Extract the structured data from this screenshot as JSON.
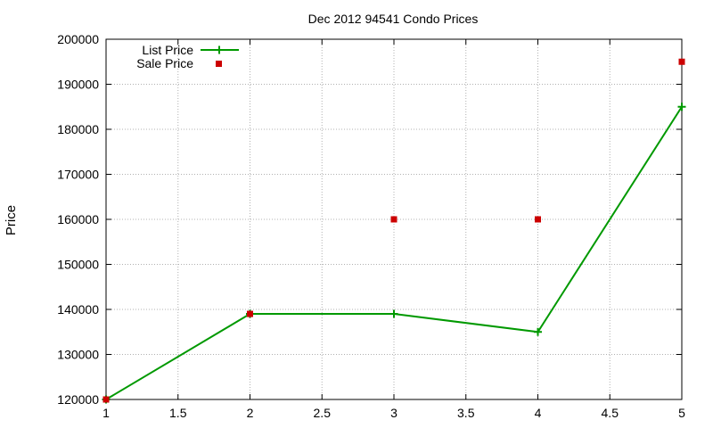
{
  "chart_data": {
    "type": "line",
    "title": "Dec 2012 94541 Condo Prices",
    "xlabel": "",
    "ylabel": "Price",
    "xlim": [
      1,
      5
    ],
    "ylim": [
      120000,
      200000
    ],
    "x_ticks": [
      "1",
      "1.5",
      "2",
      "2.5",
      "3",
      "3.5",
      "4",
      "4.5",
      "5"
    ],
    "y_ticks": [
      "120000",
      "130000",
      "140000",
      "150000",
      "160000",
      "170000",
      "180000",
      "190000",
      "200000"
    ],
    "grid": true,
    "legend_position": "top-left",
    "series": [
      {
        "name": "List Price",
        "style": "line-with-plus-markers",
        "color": "#009900",
        "points": [
          [
            1,
            120000
          ],
          [
            2,
            139000
          ],
          [
            3,
            139000
          ],
          [
            4,
            135000
          ],
          [
            5,
            185000
          ]
        ]
      },
      {
        "name": "Sale Price",
        "style": "square-markers",
        "color": "#cc0000",
        "points": [
          [
            1,
            120000
          ],
          [
            2,
            139000
          ],
          [
            3,
            160000
          ],
          [
            4,
            160000
          ],
          [
            5,
            195000
          ]
        ]
      }
    ]
  }
}
